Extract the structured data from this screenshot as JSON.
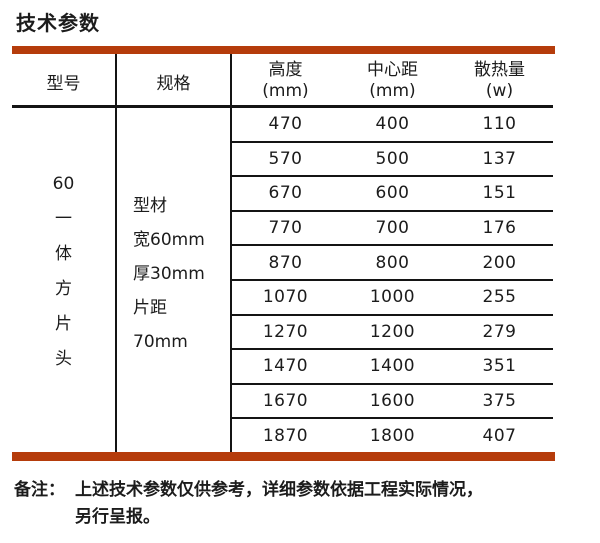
{
  "page": {
    "title": "技术参数",
    "accent_color": "#b53c0b"
  },
  "table": {
    "columns": {
      "model": "型号",
      "spec": "规格",
      "height": {
        "label": "高度",
        "unit": "(mm)"
      },
      "center": {
        "label": "中心距",
        "unit": "(mm)"
      },
      "heat": {
        "label": "散热量",
        "unit": "(w)"
      }
    },
    "model_lines": [
      "60",
      "一",
      "体",
      "方",
      "片",
      "头"
    ],
    "spec_lines": [
      "型材",
      "宽60mm",
      "厚30mm",
      "片距",
      "70mm"
    ],
    "rows": [
      {
        "height": "470",
        "center": "400",
        "heat": "110"
      },
      {
        "height": "570",
        "center": "500",
        "heat": "137"
      },
      {
        "height": "670",
        "center": "600",
        "heat": "151"
      },
      {
        "height": "770",
        "center": "700",
        "heat": "176"
      },
      {
        "height": "870",
        "center": "800",
        "heat": "200"
      },
      {
        "height": "1070",
        "center": "1000",
        "heat": "255"
      },
      {
        "height": "1270",
        "center": "1200",
        "heat": "279"
      },
      {
        "height": "1470",
        "center": "1400",
        "heat": "351"
      },
      {
        "height": "1670",
        "center": "1600",
        "heat": "375"
      },
      {
        "height": "1870",
        "center": "1800",
        "heat": "407"
      }
    ]
  },
  "note": {
    "label": "备注：",
    "line1": "上述技术参数仅供参考，详细参数依据工程实际情况，",
    "line2": "另行呈报。"
  }
}
